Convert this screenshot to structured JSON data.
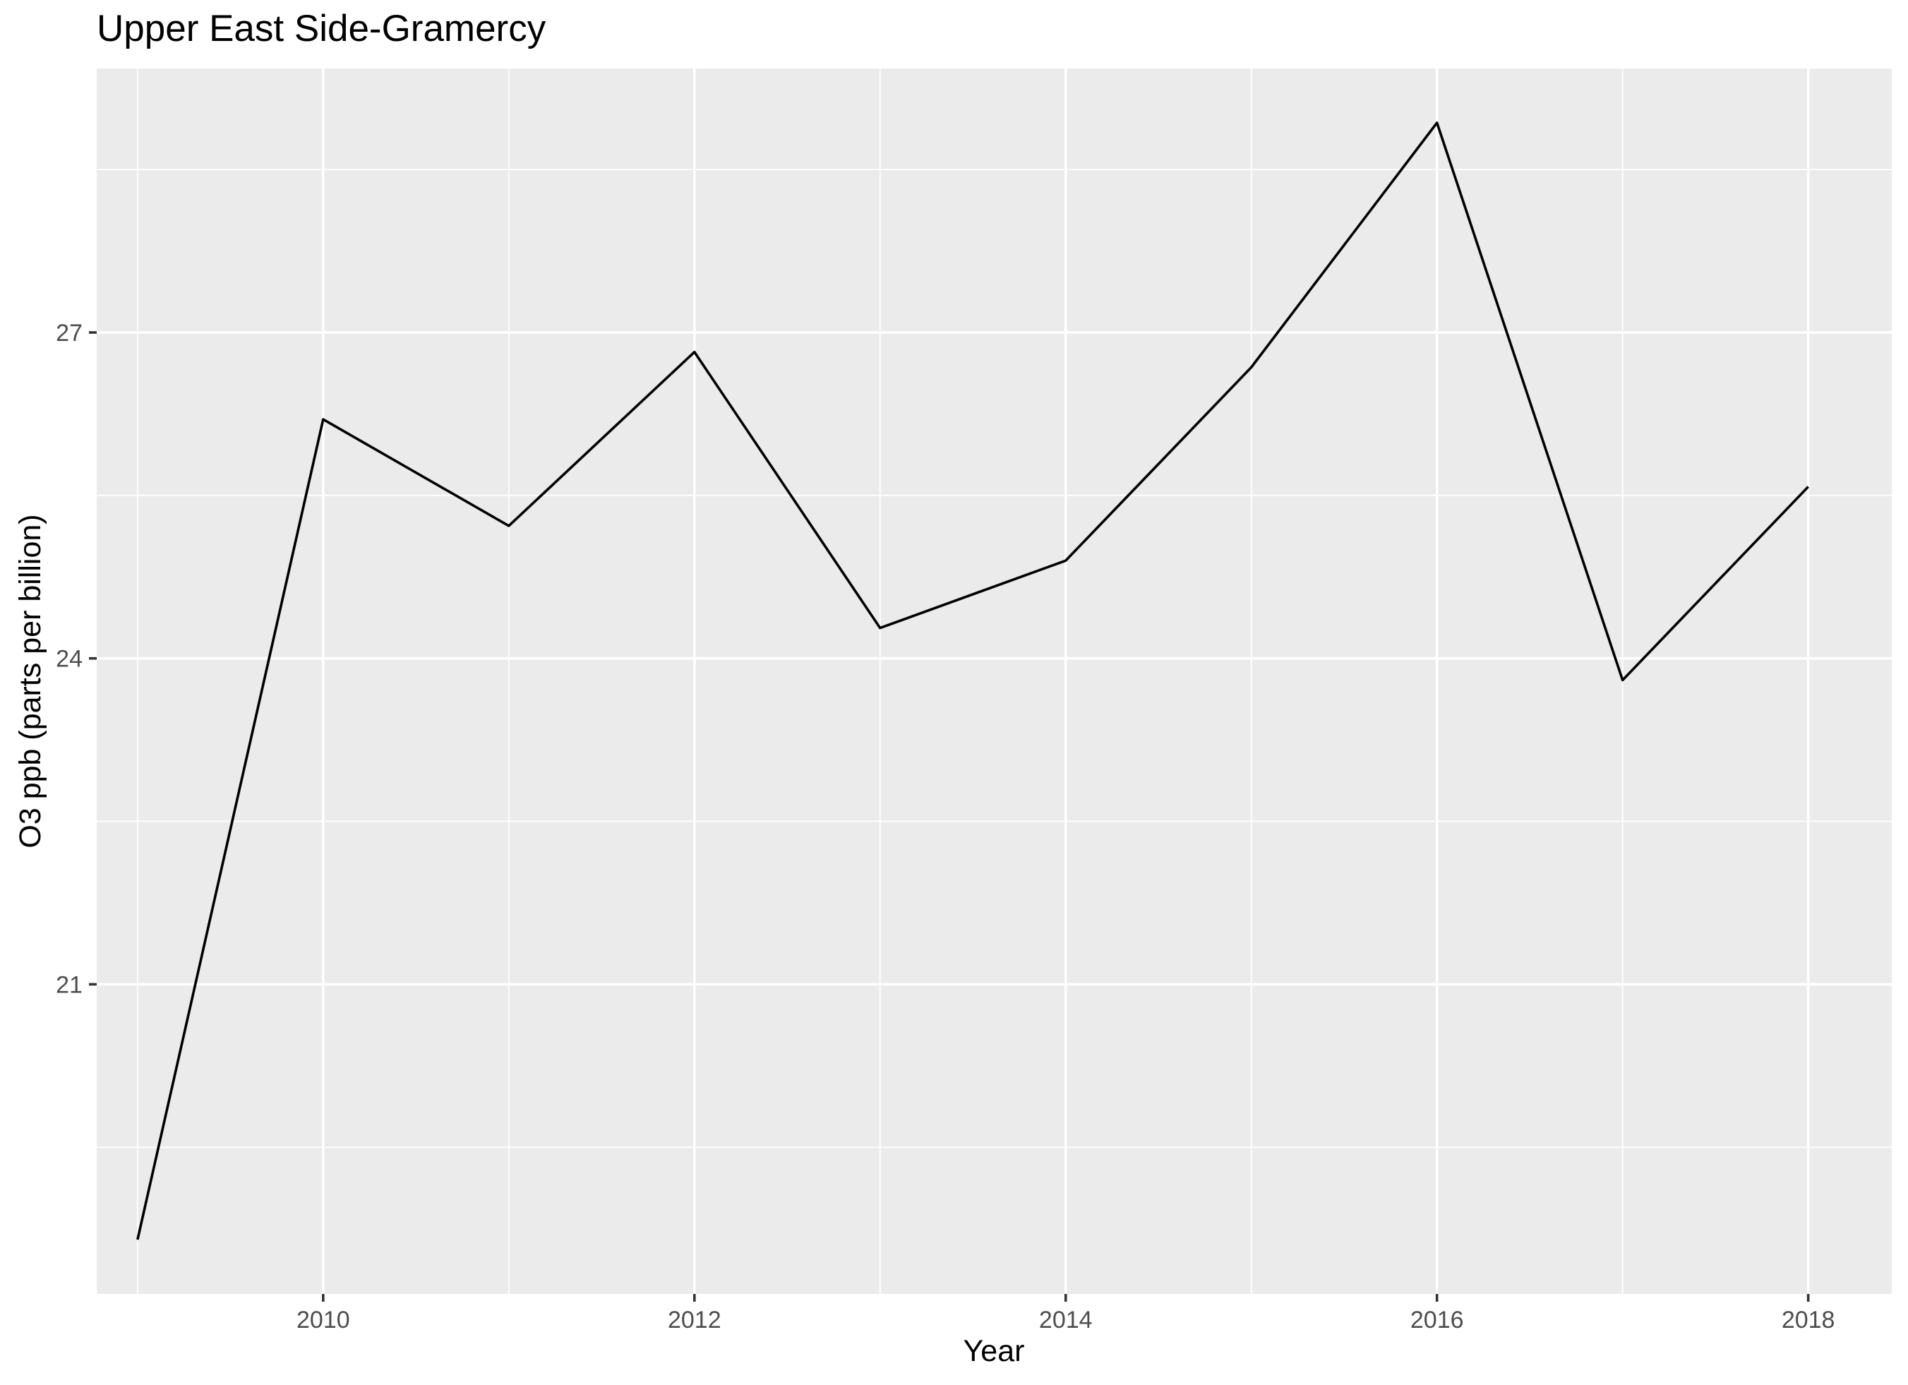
{
  "chart_data": {
    "type": "line",
    "title": "Upper East Side-Gramercy",
    "xlabel": "Year",
    "ylabel": "O3 ppb (parts per billion)",
    "x": [
      2009,
      2010,
      2011,
      2012,
      2013,
      2014,
      2015,
      2016,
      2017,
      2018
    ],
    "series": [
      {
        "values": [
          18.65,
          26.2,
          25.22,
          26.82,
          24.28,
          24.9,
          26.68,
          28.93,
          23.8,
          25.58
        ]
      }
    ],
    "xlim": [
      2008.78,
      2018.45
    ],
    "ylim": [
      18.15,
      29.43
    ],
    "x_ticks": [
      2010,
      2012,
      2014,
      2016,
      2018
    ],
    "x_tick_labels": [
      "2010",
      "2012",
      "2014",
      "2016",
      "2018"
    ],
    "y_ticks": [
      21,
      24,
      27
    ],
    "y_tick_labels": [
      "21",
      "24",
      "27"
    ],
    "x_minor_ticks": [
      2009,
      2011,
      2013,
      2015,
      2017
    ],
    "y_minor_ticks": [
      19.5,
      22.5,
      25.5,
      28.5
    ],
    "grid": true,
    "legend": "none",
    "colors": {
      "panel_background": "#ebebeb",
      "grid_line": "#ffffff",
      "series_line": "#000000",
      "tick_mark": "#333333",
      "tick_label": "#4d4d4d",
      "text": "#000000"
    }
  }
}
